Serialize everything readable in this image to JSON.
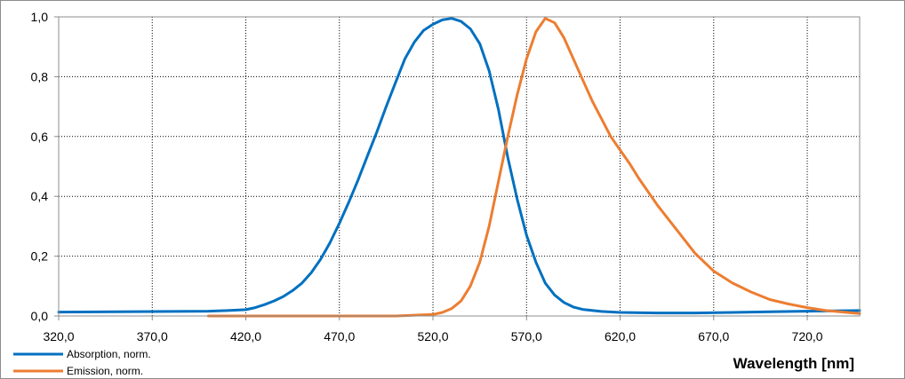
{
  "chart_data": {
    "type": "line",
    "title": "",
    "xlabel": "Wavelength [nm]",
    "ylabel": "",
    "xlim": [
      320,
      748
    ],
    "ylim": [
      0,
      1
    ],
    "grid": true,
    "legend_position": "bottom-left",
    "x_ticks": [
      "320,0",
      "370,0",
      "420,0",
      "470,0",
      "520,0",
      "570,0",
      "620,0",
      "670,0",
      "720,0"
    ],
    "x_tick_values": [
      320,
      370,
      420,
      470,
      520,
      570,
      620,
      670,
      720
    ],
    "y_ticks": [
      "0,0",
      "0,2",
      "0,4",
      "0,6",
      "0,8",
      "1,0"
    ],
    "y_tick_values": [
      0,
      0.2,
      0.4,
      0.6,
      0.8,
      1.0
    ],
    "series": [
      {
        "name": "Absorption, norm.",
        "color": "#0070c0",
        "x": [
          320,
          350,
          380,
          400,
          410,
          420,
          425,
          430,
          435,
          440,
          445,
          450,
          455,
          460,
          465,
          470,
          475,
          480,
          485,
          490,
          495,
          500,
          505,
          510,
          515,
          520,
          525,
          530,
          535,
          540,
          545,
          550,
          555,
          560,
          565,
          570,
          575,
          580,
          585,
          590,
          595,
          600,
          610,
          620,
          640,
          660,
          680,
          700,
          720,
          748
        ],
        "y": [
          0.013,
          0.014,
          0.015,
          0.016,
          0.018,
          0.021,
          0.028,
          0.038,
          0.05,
          0.065,
          0.085,
          0.11,
          0.145,
          0.19,
          0.245,
          0.31,
          0.38,
          0.455,
          0.535,
          0.615,
          0.7,
          0.78,
          0.86,
          0.915,
          0.955,
          0.975,
          0.99,
          0.995,
          0.985,
          0.96,
          0.91,
          0.82,
          0.69,
          0.53,
          0.39,
          0.27,
          0.18,
          0.11,
          0.07,
          0.045,
          0.03,
          0.022,
          0.015,
          0.012,
          0.01,
          0.01,
          0.012,
          0.014,
          0.016,
          0.018
        ]
      },
      {
        "name": "Emission, norm.",
        "color": "#ed7d31",
        "x": [
          400,
          450,
          500,
          520,
          525,
          530,
          535,
          540,
          545,
          550,
          555,
          560,
          565,
          570,
          575,
          580,
          585,
          590,
          595,
          600,
          605,
          610,
          615,
          620,
          625,
          630,
          640,
          650,
          660,
          670,
          680,
          690,
          700,
          710,
          720,
          730,
          748
        ],
        "y": [
          0,
          0,
          0,
          0.005,
          0.012,
          0.025,
          0.05,
          0.1,
          0.18,
          0.3,
          0.45,
          0.6,
          0.74,
          0.86,
          0.95,
          0.995,
          0.98,
          0.93,
          0.86,
          0.79,
          0.72,
          0.66,
          0.6,
          0.555,
          0.51,
          0.46,
          0.37,
          0.29,
          0.21,
          0.15,
          0.11,
          0.08,
          0.055,
          0.04,
          0.028,
          0.018,
          0.008
        ]
      }
    ]
  }
}
